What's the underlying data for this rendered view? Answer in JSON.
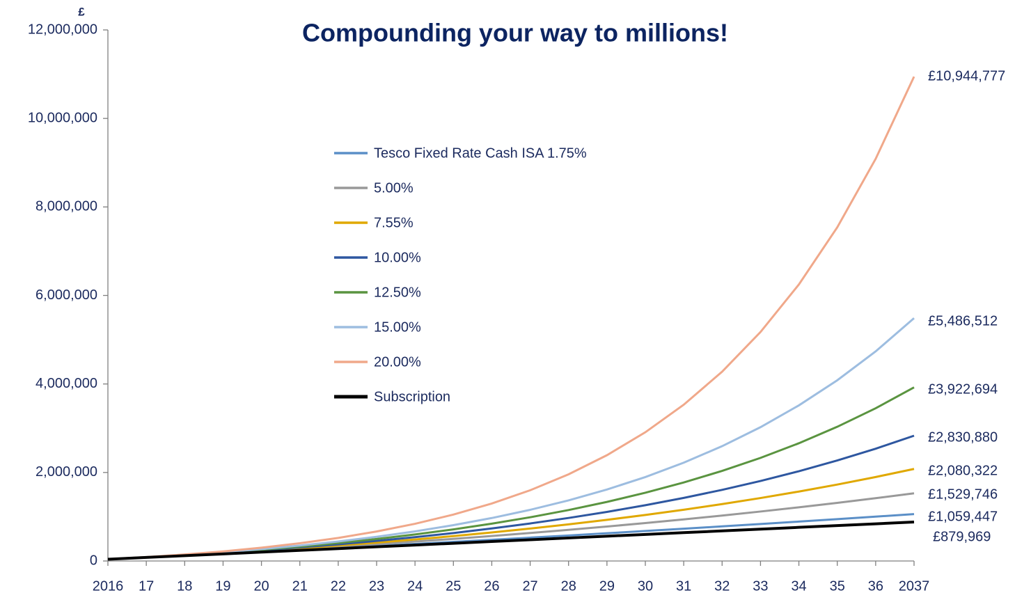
{
  "chart_data": {
    "type": "line",
    "title": "Compounding your way to millions!",
    "ylabel": "£",
    "categories": [
      "2016",
      "17",
      "18",
      "19",
      "20",
      "21",
      "22",
      "23",
      "24",
      "25",
      "26",
      "27",
      "28",
      "29",
      "30",
      "31",
      "32",
      "33",
      "34",
      "35",
      "36",
      "2037"
    ],
    "ylim": [
      0,
      12000000
    ],
    "yticks": [
      0,
      {
        "value": 2000000,
        "label": "2,000,000"
      },
      {
        "value": 4000000,
        "label": "4,000,000"
      },
      {
        "value": 6000000,
        "label": "6,000,000"
      },
      {
        "value": 8000000,
        "label": "8,000,000"
      },
      {
        "value": 10000000,
        "label": "10,000,000"
      },
      {
        "value": 12000000,
        "label": "12,000,000"
      }
    ],
    "grid": false,
    "legend": "center",
    "series": [
      {
        "name": "Tesco Fixed Rate Cash ISA 1.75%",
        "color": "#5b8fc7",
        "values": [
          39895,
          80489,
          121791,
          163816,
          206580,
          250090,
          294360,
          339410,
          385240,
          431880,
          479330,
          527610,
          576740,
          626730,
          677590,
          729340,
          782000,
          835580,
          890090,
          945570,
          1002010,
          1059447
        ],
        "value_labels": [
          null,
          null,
          null,
          null,
          null,
          null,
          null,
          null,
          null,
          null,
          null,
          null,
          null,
          null,
          null,
          null,
          null,
          null,
          null,
          null,
          null,
          "£1,059,447"
        ]
      },
      {
        "name": "5.00%",
        "color": "#999999",
        "values": [
          39729,
          81444,
          125246,
          171236,
          219526,
          270232,
          323474,
          379374,
          438074,
          499706,
          564420,
          632370,
          703720,
          778630,
          857290,
          939880,
          1026600,
          1117670,
          1213280,
          1313670,
          1419090,
          1529746
        ],
        "value_labels": [
          null,
          null,
          null,
          null,
          null,
          null,
          null,
          null,
          null,
          null,
          null,
          null,
          null,
          null,
          null,
          null,
          null,
          null,
          null,
          null,
          null,
          "£1,529,746"
        ]
      },
      {
        "name": "7.55%",
        "color": "#e0a800",
        "values": [
          39670,
          82336,
          128221,
          177571,
          230646,
          287727,
          349120,
          415150,
          486160,
          562530,
          644670,
          733010,
          828020,
          930210,
          1040110,
          1158300,
          1285420,
          1422140,
          1569180,
          1727330,
          1897410,
          2080322
        ],
        "value_labels": [
          null,
          null,
          null,
          null,
          null,
          null,
          null,
          null,
          null,
          null,
          null,
          null,
          null,
          null,
          null,
          null,
          null,
          null,
          null,
          null,
          null,
          "£2,080,322"
        ]
      },
      {
        "name": "10.00%",
        "color": "#2e57a0",
        "values": [
          39647,
          83259,
          131232,
          184002,
          242048,
          305899,
          376137,
          453396,
          538383,
          631866,
          734699,
          847814,
          972244,
          1109120,
          1259680,
          1425300,
          1607470,
          1807870,
          2028300,
          2270780,
          2537510,
          2830880
        ],
        "value_labels": [
          null,
          null,
          null,
          null,
          null,
          null,
          null,
          null,
          null,
          null,
          null,
          null,
          null,
          null,
          null,
          null,
          null,
          null,
          null,
          null,
          null,
          "£2,830,880"
        ]
      },
      {
        "name": "12.50%",
        "color": "#5a9440",
        "values": [
          39716,
          84397,
          134662,
          191209,
          254826,
          326392,
          406910,
          497488,
          599394,
          714035,
          843004,
          988100,
          1151330,
          1334960,
          1541550,
          1773960,
          2035420,
          2329560,
          2660470,
          3032740,
          3451540,
          3922694
        ],
        "value_labels": [
          null,
          null,
          null,
          null,
          null,
          null,
          null,
          null,
          null,
          null,
          null,
          null,
          null,
          null,
          null,
          null,
          null,
          null,
          null,
          null,
          null,
          "£3,922,694"
        ]
      },
      {
        "name": "15.00%",
        "color": "#9dbde0",
        "values": [
          39864,
          85708,
          138428,
          199057,
          268779,
          348962,
          441174,
          547210,
          669158,
          809399,
          970652,
          1156130,
          1369400,
          1614690,
          1896770,
          2221150,
          2594160,
          3023140,
          3516460,
          4083740,
          4736300,
          5486512
        ],
        "value_labels": [
          null,
          null,
          null,
          null,
          null,
          null,
          null,
          null,
          null,
          null,
          null,
          null,
          null,
          null,
          null,
          null,
          null,
          null,
          null,
          null,
          null,
          "£5,486,512"
        ]
      },
      {
        "name": "20.00%",
        "color": "#f0a88a",
        "values": [
          40383,
          88843,
          146994,
          216776,
          300528,
          401003,
          521587,
          666284,
          839929,
          1048306,
          1298319,
          1598402,
          1958461,
          2390521,
          2909001,
          3531170,
          4277800,
          5173870,
          6248730,
          7539000,
          9087000,
          10944777
        ],
        "value_labels": [
          null,
          null,
          null,
          null,
          null,
          null,
          null,
          null,
          null,
          null,
          null,
          null,
          null,
          null,
          null,
          null,
          null,
          null,
          null,
          null,
          null,
          "£10,944,777"
        ]
      },
      {
        "name": "Subscription",
        "color": "#000000",
        "values": [
          40000,
          80000,
          120000,
          160000,
          200000,
          240000,
          280000,
          320000,
          360000,
          400000,
          440000,
          480000,
          520000,
          560000,
          600000,
          640000,
          680000,
          720000,
          760000,
          800000,
          840000,
          879969
        ],
        "value_labels": [
          null,
          null,
          null,
          null,
          null,
          null,
          null,
          null,
          null,
          null,
          null,
          null,
          null,
          null,
          null,
          null,
          null,
          null,
          null,
          null,
          null,
          "£879,969"
        ]
      }
    ]
  }
}
